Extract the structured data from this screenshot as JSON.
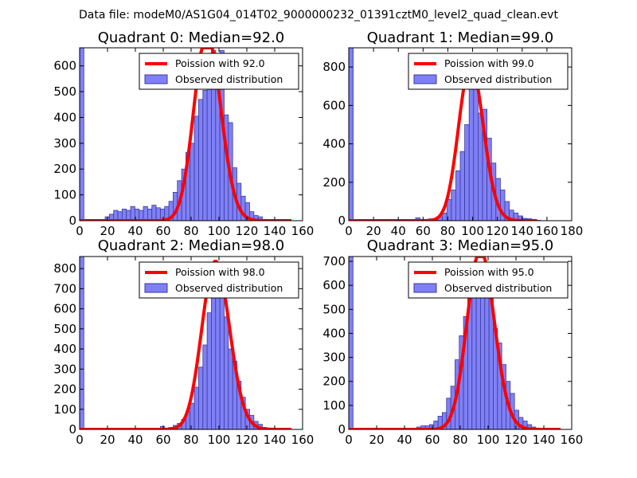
{
  "figure": {
    "suptitle": "Data file: modeM0/AS1G04_014T02_9000000232_01391cztM0_level2_quad_clean.evt"
  },
  "colors": {
    "bar_fill": "#8080f6",
    "bar_edge": "#3a3a9e",
    "curve": "#ff0000",
    "axis": "#000000"
  },
  "chart_data": [
    {
      "type": "bar",
      "title": "Quadrant 0: Median=92.0",
      "xlim": [
        0,
        160
      ],
      "ylim": [
        0,
        670
      ],
      "xticks": [
        "0",
        "20",
        "40",
        "60",
        "80",
        "100",
        "120",
        "140",
        "160"
      ],
      "yticks": [
        "0",
        "100",
        "200",
        "300",
        "400",
        "500",
        "600"
      ],
      "ytick_values": [
        0,
        100,
        200,
        300,
        400,
        500,
        600
      ],
      "bin_width": 3.05,
      "bins": [
        [
          0,
          670
        ],
        [
          3.05,
          0
        ],
        [
          6.1,
          1
        ],
        [
          9.15,
          1
        ],
        [
          12.2,
          2
        ],
        [
          15.25,
          5
        ],
        [
          18.3,
          15
        ],
        [
          21.35,
          25
        ],
        [
          24.4,
          40
        ],
        [
          27.45,
          35
        ],
        [
          30.5,
          45
        ],
        [
          33.55,
          40
        ],
        [
          36.6,
          55
        ],
        [
          39.65,
          45
        ],
        [
          42.7,
          40
        ],
        [
          45.75,
          55
        ],
        [
          48.8,
          45
        ],
        [
          51.85,
          60
        ],
        [
          54.9,
          50
        ],
        [
          57.95,
          45
        ],
        [
          61,
          55
        ],
        [
          64.05,
          75
        ],
        [
          67.1,
          110
        ],
        [
          70.15,
          155
        ],
        [
          73.2,
          200
        ],
        [
          76.25,
          265
        ],
        [
          79.3,
          300
        ],
        [
          82.35,
          405
        ],
        [
          85.4,
          470
        ],
        [
          88.45,
          505
        ],
        [
          91.5,
          610
        ],
        [
          94.55,
          660
        ],
        [
          97.6,
          600
        ],
        [
          100.65,
          660
        ],
        [
          103.7,
          410
        ],
        [
          106.75,
          380
        ],
        [
          109.8,
          205
        ],
        [
          112.85,
          145
        ],
        [
          115.9,
          95
        ],
        [
          118.95,
          70
        ],
        [
          122,
          35
        ],
        [
          125.05,
          20
        ],
        [
          128.1,
          15
        ],
        [
          131.15,
          5
        ],
        [
          134.2,
          5
        ],
        [
          137.25,
          2
        ],
        [
          140.3,
          1
        ]
      ],
      "curve_mean": 92.0,
      "legend": [
        "Poission with 92.0",
        "Observed distribution"
      ]
    },
    {
      "type": "bar",
      "title": "Quadrant 1: Median=99.0",
      "xlim": [
        0,
        180
      ],
      "ylim": [
        0,
        900
      ],
      "xticks": [
        "0",
        "20",
        "40",
        "60",
        "80",
        "100",
        "120",
        "140",
        "160",
        "180"
      ],
      "yticks": [
        "0",
        "200",
        "400",
        "600",
        "800"
      ],
      "ytick_values": [
        0,
        200,
        400,
        600,
        800
      ],
      "bin_width": 3.6,
      "bins": [
        [
          0,
          900
        ],
        [
          54,
          15
        ],
        [
          64.8,
          10
        ],
        [
          68.4,
          5
        ],
        [
          72,
          20
        ],
        [
          75.6,
          40
        ],
        [
          79.2,
          110
        ],
        [
          82.8,
          160
        ],
        [
          86.4,
          260
        ],
        [
          90,
          360
        ],
        [
          93.6,
          500
        ],
        [
          97.2,
          740
        ],
        [
          100.8,
          690
        ],
        [
          104.4,
          560
        ],
        [
          108,
          580
        ],
        [
          111.6,
          430
        ],
        [
          115.2,
          300
        ],
        [
          118.8,
          220
        ],
        [
          122.4,
          160
        ],
        [
          126,
          100
        ],
        [
          129.6,
          55
        ],
        [
          133.2,
          40
        ],
        [
          136.8,
          25
        ],
        [
          140.4,
          12
        ],
        [
          144,
          10
        ],
        [
          147.6,
          5
        ],
        [
          151.2,
          2
        ]
      ],
      "curve_mean": 99.0,
      "legend": [
        "Poission with 99.0",
        "Observed distribution"
      ]
    },
    {
      "type": "bar",
      "title": "Quadrant 2: Median=98.0",
      "xlim": [
        0,
        160
      ],
      "ylim": [
        0,
        860
      ],
      "xticks": [
        "0",
        "20",
        "40",
        "60",
        "80",
        "100",
        "120",
        "140",
        "160"
      ],
      "yticks": [
        "0",
        "100",
        "200",
        "300",
        "400",
        "500",
        "600",
        "700",
        "800"
      ],
      "ytick_values": [
        0,
        100,
        200,
        300,
        400,
        500,
        600,
        700,
        800
      ],
      "bin_width": 3.05,
      "bins": [
        [
          0,
          860
        ],
        [
          57.95,
          15
        ],
        [
          61,
          5
        ],
        [
          64.05,
          10
        ],
        [
          67.1,
          20
        ],
        [
          70.15,
          30
        ],
        [
          73.2,
          50
        ],
        [
          76.25,
          90
        ],
        [
          79.3,
          130
        ],
        [
          82.35,
          210
        ],
        [
          85.4,
          310
        ],
        [
          88.45,
          420
        ],
        [
          91.5,
          580
        ],
        [
          94.55,
          740
        ],
        [
          97.6,
          760
        ],
        [
          100.65,
          660
        ],
        [
          103.7,
          560
        ],
        [
          106.75,
          400
        ],
        [
          109.8,
          340
        ],
        [
          112.85,
          240
        ],
        [
          115.9,
          160
        ],
        [
          118.95,
          100
        ],
        [
          122,
          70
        ],
        [
          125.05,
          40
        ],
        [
          128.1,
          25
        ],
        [
          131.15,
          10
        ],
        [
          134.2,
          5
        ],
        [
          137.25,
          3
        ]
      ],
      "curve_mean": 98.0,
      "legend": [
        "Poission with 98.0",
        "Observed distribution"
      ]
    },
    {
      "type": "bar",
      "title": "Quadrant 3: Median=95.0",
      "xlim": [
        0,
        160
      ],
      "ylim": [
        0,
        720
      ],
      "xticks": [
        "0",
        "20",
        "40",
        "60",
        "80",
        "100",
        "120",
        "140",
        "160"
      ],
      "yticks": [
        "0",
        "100",
        "200",
        "300",
        "400",
        "500",
        "600",
        "700"
      ],
      "ytick_values": [
        0,
        100,
        200,
        300,
        400,
        500,
        600,
        700
      ],
      "bin_width": 3.05,
      "bins": [
        [
          0,
          720
        ],
        [
          42.7,
          5
        ],
        [
          48.8,
          10
        ],
        [
          51.85,
          15
        ],
        [
          54.9,
          15
        ],
        [
          57.95,
          20
        ],
        [
          61,
          35
        ],
        [
          64.05,
          55
        ],
        [
          67.1,
          70
        ],
        [
          70.15,
          130
        ],
        [
          73.2,
          180
        ],
        [
          76.25,
          290
        ],
        [
          79.3,
          390
        ],
        [
          82.35,
          470
        ],
        [
          85.4,
          560
        ],
        [
          88.45,
          650
        ],
        [
          91.5,
          680
        ],
        [
          94.55,
          650
        ],
        [
          97.6,
          660
        ],
        [
          100.65,
          570
        ],
        [
          103.7,
          420
        ],
        [
          106.75,
          360
        ],
        [
          109.8,
          270
        ],
        [
          112.85,
          200
        ],
        [
          115.9,
          150
        ],
        [
          118.95,
          80
        ],
        [
          122,
          50
        ],
        [
          125.05,
          35
        ],
        [
          128.1,
          20
        ],
        [
          131.15,
          10
        ],
        [
          134.2,
          5
        ],
        [
          137.25,
          2
        ]
      ],
      "curve_mean": 95.0,
      "legend": [
        "Poission with 95.0",
        "Observed distribution"
      ]
    }
  ]
}
